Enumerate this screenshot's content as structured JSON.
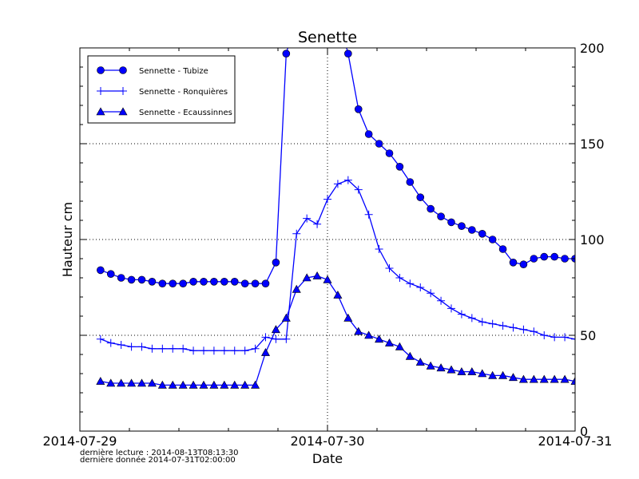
{
  "chart_data": {
    "type": "line",
    "title": "Senette",
    "xlabel": "Date",
    "ylabel": "Hauteur cm",
    "xlim": [
      "2014-07-29T00:00:00",
      "2014-07-31T00:00:00"
    ],
    "ylim": [
      0,
      200
    ],
    "x_tick_labels": [
      "2014-07-29",
      "2014-07-30",
      "2014-07-31"
    ],
    "y_tick_labels": [
      "0",
      "50",
      "100",
      "150",
      "200"
    ],
    "y_axis_side": "right",
    "grid": "dotted, major ticks",
    "legend_placement": "top-left",
    "x_start": "2014-07-29T02:00:00",
    "x_step_hours": 1,
    "series": [
      {
        "name": "Sennette - Tubize",
        "marker": "circle",
        "color": "#0000ff",
        "values": [
          84,
          82,
          80,
          79,
          79,
          78,
          77,
          77,
          77,
          78,
          78,
          78,
          78,
          78,
          77,
          77,
          77,
          88,
          197,
          null,
          null,
          null,
          null,
          null,
          197,
          168,
          155,
          150,
          145,
          138,
          130,
          122,
          116,
          112,
          109,
          107,
          105,
          103,
          100,
          95,
          88,
          87,
          90,
          91,
          91,
          90,
          90
        ]
      },
      {
        "name": "Sennette - Ronquières",
        "marker": "plus",
        "color": "#0000ff",
        "values": [
          48,
          46,
          45,
          44,
          44,
          43,
          43,
          43,
          43,
          42,
          42,
          42,
          42,
          42,
          42,
          43,
          49,
          48,
          48,
          103,
          111,
          108,
          121,
          129,
          131,
          126,
          113,
          95,
          85,
          80,
          77,
          75,
          72,
          68,
          64,
          61,
          59,
          57,
          56,
          55,
          54,
          53,
          52,
          50,
          49,
          49,
          48
        ]
      },
      {
        "name": "Sennette - Ecaussinnes",
        "marker": "triangle",
        "color": "#0000ff",
        "values": [
          26,
          25,
          25,
          25,
          25,
          25,
          24,
          24,
          24,
          24,
          24,
          24,
          24,
          24,
          24,
          24,
          41,
          53,
          59,
          74,
          80,
          81,
          79,
          71,
          59,
          52,
          50,
          48,
          46,
          44,
          39,
          36,
          34,
          33,
          32,
          31,
          31,
          30,
          29,
          29,
          28,
          27,
          27,
          27,
          27,
          27,
          26
        ]
      }
    ]
  },
  "footer": {
    "last_read": "dernière lecture : 2014-08-13T08:13:30",
    "last_data": "dernière donnée  2014-07-31T02:00:00"
  }
}
